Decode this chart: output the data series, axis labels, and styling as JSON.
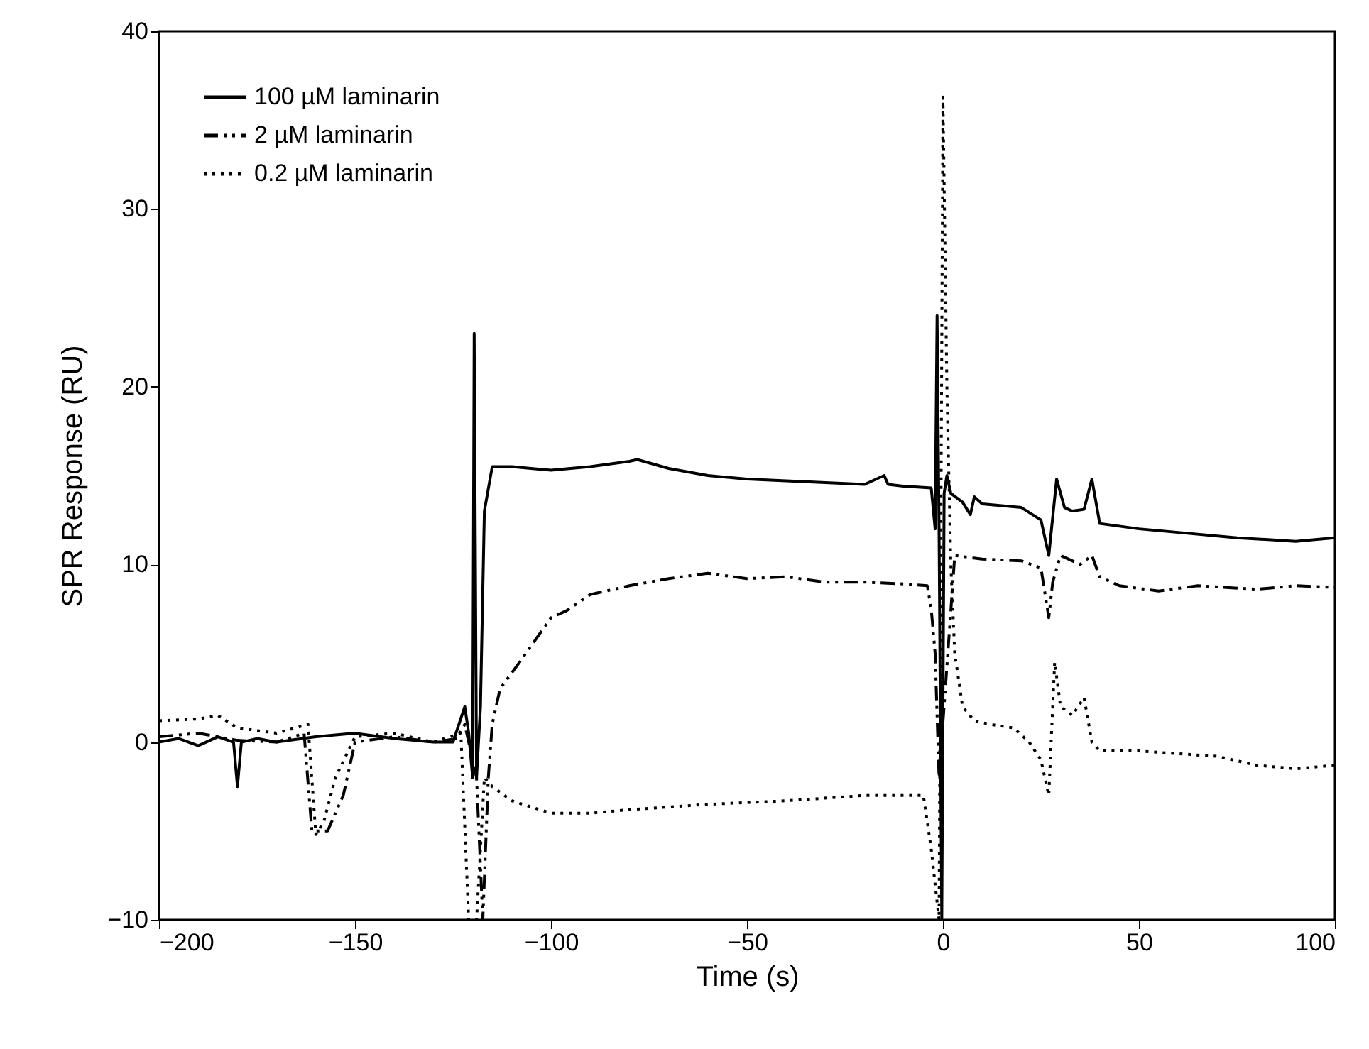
{
  "chart_data": {
    "type": "line",
    "xlabel": "Time (s)",
    "ylabel": "SPR Response (RU)",
    "xlim": [
      -200,
      100
    ],
    "ylim": [
      -10,
      40
    ],
    "xticks": [
      -200,
      -150,
      -100,
      -50,
      0,
      50,
      100
    ],
    "yticks": [
      -10,
      0,
      10,
      20,
      30,
      40
    ],
    "grid": false,
    "legend": "top left",
    "series": [
      {
        "name": "100 µM laminarin",
        "color": "#000000",
        "line_style": "solid",
        "x": [
          -200,
          -195,
          -190,
          -185,
          -181,
          -180,
          -179,
          -175,
          -170,
          -160,
          -150,
          -140,
          -130,
          -125,
          -122,
          -121,
          -120,
          -119.6,
          -119,
          -118,
          -117,
          -115,
          -110,
          -100,
          -90,
          -80,
          -78,
          -70,
          -60,
          -50,
          -40,
          -30,
          -20,
          -15,
          -14,
          -10,
          -3,
          -2,
          -1.5,
          -1,
          -0.3,
          0.3,
          1,
          2,
          5,
          7,
          8,
          10,
          15,
          20,
          25,
          27,
          29,
          31,
          33,
          36,
          38,
          40,
          50,
          60,
          75,
          90,
          100
        ],
        "values": [
          0,
          0.2,
          -0.2,
          0.3,
          0,
          -2.5,
          0,
          0.2,
          0,
          0.3,
          0.5,
          0.2,
          0,
          0,
          2,
          0.5,
          -2,
          23,
          -2,
          2,
          13,
          15.5,
          15.5,
          15.3,
          15.5,
          15.8,
          15.9,
          15.4,
          15,
          14.8,
          14.7,
          14.6,
          14.5,
          15,
          14.5,
          14.4,
          14.3,
          12,
          24,
          12,
          -10,
          14,
          15,
          14,
          13.5,
          12.8,
          13.8,
          13.4,
          13.3,
          13.2,
          12.5,
          10.5,
          14.8,
          13.2,
          13,
          13.1,
          14.8,
          12.3,
          12,
          11.8,
          11.5,
          11.3,
          11.5
        ]
      },
      {
        "name": "2 µM laminarin",
        "color": "#000000",
        "line_style": "dashed",
        "x": [
          -200,
          -190,
          -180,
          -170,
          -163,
          -161,
          -157,
          -153,
          -150,
          -140,
          -130,
          -124,
          -122,
          -119,
          -117.4,
          -116,
          -115,
          -113,
          -108,
          -100,
          -96,
          -90,
          -80,
          -70,
          -60,
          -50,
          -40,
          -30,
          -20,
          -10,
          -4,
          -3,
          -2,
          -1,
          3,
          10,
          20,
          25,
          27,
          28,
          30,
          35,
          38,
          40,
          45,
          55,
          65,
          80,
          90,
          100
        ],
        "values": [
          0.3,
          0.5,
          0.1,
          0,
          0.5,
          -5,
          -5,
          -3,
          0,
          0.3,
          0,
          0.2,
          1,
          -2,
          -10,
          -2,
          1,
          3,
          4.5,
          7,
          7.4,
          8.3,
          8.8,
          9.2,
          9.5,
          9.2,
          9.3,
          9,
          9,
          8.9,
          8.8,
          7.5,
          5,
          -2,
          10.5,
          10.3,
          10.2,
          9.8,
          7,
          9,
          10.5,
          10,
          10.5,
          9.3,
          8.8,
          8.5,
          8.8,
          8.6,
          8.8,
          8.7
        ]
      },
      {
        "name": "0.2 µM laminarin",
        "color": "#000000",
        "line_style": "dotted",
        "x": [
          -200,
          -190,
          -185,
          -180,
          -170,
          -162,
          -160,
          -158,
          -155,
          -150,
          -140,
          -130,
          -123,
          -121,
          -119,
          -117,
          -115,
          -110,
          -100,
          -90,
          -80,
          -60,
          -40,
          -20,
          -5,
          -3,
          -1,
          0,
          1,
          2,
          3,
          5,
          8,
          12,
          18,
          22,
          25,
          27,
          28.5,
          30,
          33,
          36,
          38,
          40,
          50,
          70,
          80,
          90,
          100
        ],
        "values": [
          1.2,
          1.3,
          1.5,
          0.8,
          0.5,
          1,
          -5.2,
          -4.5,
          -2,
          0.3,
          0.5,
          0,
          0.5,
          -10,
          -10,
          -2,
          -2.5,
          -3.3,
          -4,
          -4,
          -3.8,
          -3.5,
          -3.3,
          -3,
          -3,
          -6,
          -10,
          36.3,
          20,
          10,
          5,
          2,
          1.2,
          1,
          0.8,
          0,
          -1,
          -3,
          4.5,
          2,
          1.5,
          2.5,
          0,
          -0.5,
          -0.5,
          -0.8,
          -1.3,
          -1.5,
          -1.3
        ]
      }
    ]
  }
}
